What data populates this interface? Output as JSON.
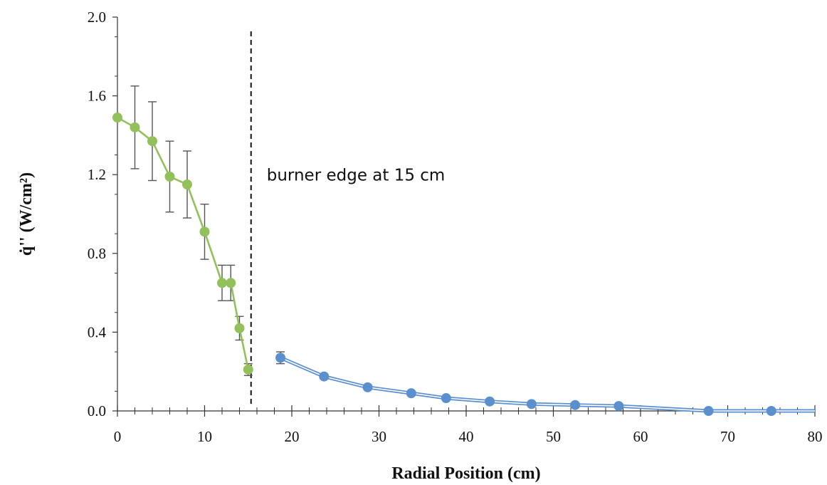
{
  "chart_data": {
    "type": "scatter",
    "xlabel": "Radial Position (cm)",
    "ylabel": "q̇'' (W/cm²)",
    "xlim": [
      0,
      80
    ],
    "ylim": [
      0,
      2.0
    ],
    "x_ticks": [
      0,
      10,
      20,
      30,
      40,
      50,
      60,
      70,
      80
    ],
    "x_tick_labels": [
      "0",
      "10",
      "20",
      "30",
      "40",
      "50",
      "60",
      "70",
      "80"
    ],
    "y_ticks": [
      0,
      0.4,
      0.8,
      1.2,
      1.6,
      2.0
    ],
    "y_tick_labels": [
      "0.0",
      "0.4",
      "0.8",
      "1.2",
      "1.6",
      "2.0"
    ],
    "grid": false,
    "legend": "none",
    "series": [
      {
        "color": "#92c05a",
        "x": [
          0,
          2,
          4,
          6,
          8,
          10,
          12,
          13,
          14,
          15
        ],
        "y": [
          1.49,
          1.44,
          1.37,
          1.19,
          1.15,
          0.91,
          0.65,
          0.65,
          0.42,
          0.21
        ],
        "err": [
          0,
          0.21,
          0.2,
          0.18,
          0.17,
          0.14,
          0.09,
          0.09,
          0.06,
          0.03
        ]
      },
      {
        "color": "#5b8fce",
        "x": [
          18.7,
          23.7,
          28.7,
          33.7,
          37.7,
          42.7,
          47.5,
          52.5,
          57.5,
          67.8,
          75
        ],
        "y": [
          0.27,
          0.175,
          0.12,
          0.09,
          0.065,
          0.048,
          0.035,
          0.03,
          0.025,
          0.0,
          0.0
        ],
        "err": [
          0.03,
          0.012,
          0.01,
          0.008,
          0.006,
          0.005,
          0.004,
          0.004,
          0.003,
          0.003,
          0.003
        ]
      }
    ],
    "annotations": [
      {
        "text": "burner edge at 15 cm",
        "x": 15
      }
    ]
  }
}
